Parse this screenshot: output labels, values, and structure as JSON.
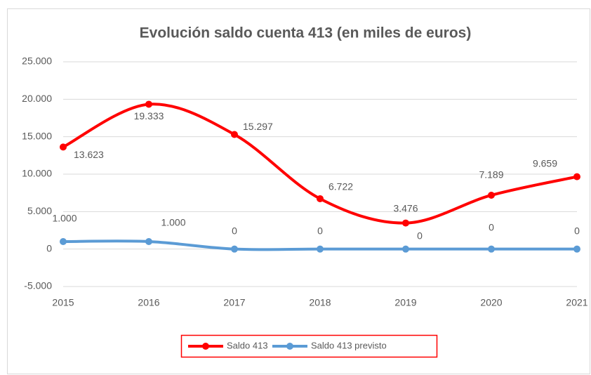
{
  "chart_data": {
    "type": "line",
    "title": "Evolución saldo cuenta 413 (en miles de euros)",
    "categories": [
      "2015",
      "2016",
      "2017",
      "2018",
      "2019",
      "2020",
      "2021"
    ],
    "series": [
      {
        "name": "Saldo 413",
        "color": "#ff0000",
        "values": [
          13623,
          19333,
          15297,
          6722,
          3476,
          7189,
          9659
        ],
        "value_labels": [
          "13.623",
          "19.333",
          "15.297",
          "6.722",
          "3.476",
          "7.189",
          "9.659"
        ]
      },
      {
        "name": "Saldo 413 previsto",
        "color": "#5b9bd5",
        "values": [
          1000,
          1000,
          0,
          0,
          0,
          0,
          0
        ],
        "value_labels": [
          "1.000",
          "1.000",
          "0",
          "0",
          "0",
          "0",
          "0"
        ]
      }
    ],
    "ylim": [
      -5000,
      25000
    ],
    "yticks": [
      {
        "value": -5000,
        "label": "-5.000"
      },
      0,
      {
        "value": 5000,
        "label": "5.000"
      },
      {
        "value": 10000,
        "label": "10.000"
      },
      {
        "value": 15000,
        "label": "15.000"
      },
      {
        "value": 20000,
        "label": "20.000"
      },
      {
        "value": 25000,
        "label": "25.000"
      }
    ],
    "grid": true,
    "legend": "bottom",
    "smooth": true
  }
}
